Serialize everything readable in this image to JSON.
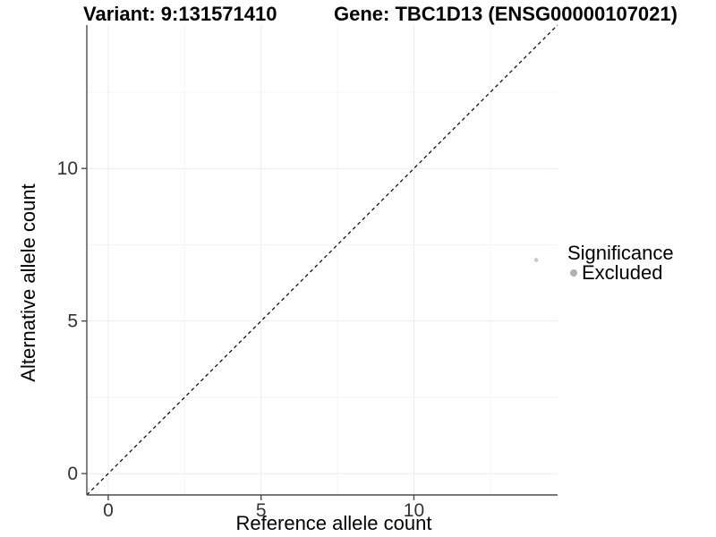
{
  "chart_data": {
    "type": "scatter",
    "titles": {
      "left": "Variant: 9:131571410",
      "right": "Gene: TBC1D13 (ENSG00000107021)"
    },
    "xlabel": "Reference allele count",
    "ylabel": "Alternative allele count",
    "xlim": [
      -0.7,
      14.7
    ],
    "ylim": [
      -0.7,
      14.7
    ],
    "x_ticks": [
      0,
      5,
      10
    ],
    "y_ticks": [
      0,
      5,
      10
    ],
    "x_minor_ticks": [
      2.5,
      7.5,
      12.5
    ],
    "y_minor_ticks": [
      2.5,
      7.5,
      12.5
    ],
    "grid": "major+minor",
    "points": [
      {
        "x": 14,
        "y": 7,
        "series": "Excluded"
      }
    ],
    "reference_line": {
      "kind": "identity y=x",
      "style": "dashed",
      "color": "#000000"
    },
    "legend": {
      "title": "Significance",
      "position": "right",
      "items": [
        {
          "label": "Excluded",
          "color": "#b0b0b0"
        }
      ]
    },
    "colors": {
      "background": "#ffffff",
      "axis_line": "#4d4d4d",
      "tick_label": "#333333",
      "text": "#000000",
      "grid_major": "#ececec",
      "grid_minor": "#f5f5f5",
      "point": "#c8c8c8"
    }
  }
}
